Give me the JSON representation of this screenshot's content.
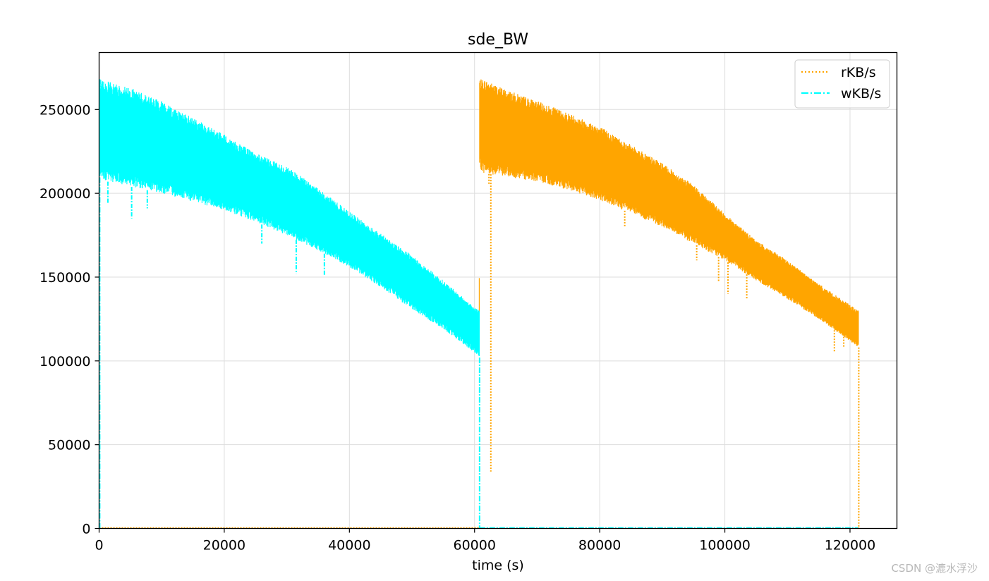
{
  "chart_data": {
    "type": "line",
    "title": "sde_BW",
    "xlabel": "time (s)",
    "ylabel": "",
    "xlim": [
      0,
      127500
    ],
    "ylim": [
      0,
      284000
    ],
    "xticks": [
      0,
      20000,
      40000,
      60000,
      80000,
      100000,
      120000
    ],
    "yticks": [
      0,
      50000,
      100000,
      150000,
      200000,
      250000
    ],
    "xtick_labels": [
      "0",
      "20000",
      "40000",
      "60000",
      "80000",
      "100000",
      "120000"
    ],
    "ytick_labels": [
      "0",
      "50000",
      "100000",
      "150000",
      "200000",
      "250000"
    ],
    "grid": true,
    "legend_position": "top-right",
    "series": [
      {
        "name": "rKB/s",
        "color": "#ffa500",
        "linestyle": "dotted",
        "x": [
          0,
          60700,
          60800,
          61500,
          65000,
          70000,
          75000,
          80000,
          85000,
          90000,
          95000,
          100000,
          105000,
          110000,
          115000,
          121400,
          121500
        ],
        "upper": [
          0,
          0,
          268000,
          268000,
          262000,
          255000,
          248000,
          240000,
          229000,
          218000,
          205000,
          188000,
          172000,
          160000,
          146000,
          130000,
          0
        ],
        "lower": [
          0,
          0,
          215000,
          212000,
          210000,
          207000,
          202000,
          196000,
          188000,
          180000,
          170000,
          160000,
          148000,
          137000,
          125000,
          108000,
          0
        ],
        "dips": [
          [
            62600,
            34000
          ],
          [
            62300,
            205000
          ],
          [
            84000,
            180000
          ],
          [
            95500,
            160000
          ],
          [
            99000,
            147000
          ],
          [
            100500,
            140000
          ],
          [
            103500,
            137000
          ],
          [
            117500,
            105000
          ],
          [
            119000,
            108000
          ]
        ]
      },
      {
        "name": "wKB/s",
        "color": "#00ffff",
        "linestyle": "dashdot",
        "x": [
          0,
          100,
          5000,
          10000,
          15000,
          20000,
          25000,
          30000,
          35000,
          40000,
          45000,
          50000,
          55000,
          60000,
          60800,
          60900
        ],
        "upper": [
          0,
          268000,
          263000,
          255000,
          245000,
          235000,
          224000,
          216000,
          203000,
          189000,
          176000,
          163000,
          148000,
          132000,
          131000,
          0
        ],
        "lower": [
          0,
          208000,
          204000,
          200000,
          195000,
          190000,
          183000,
          175000,
          166000,
          156000,
          144000,
          131000,
          119000,
          105000,
          102000,
          0
        ],
        "dips": [
          [
            1400,
            194000
          ],
          [
            5200,
            185000
          ],
          [
            7700,
            191000
          ],
          [
            26000,
            170000
          ],
          [
            31500,
            152000
          ],
          [
            36000,
            151000
          ],
          [
            48500,
            145000
          ],
          [
            53000,
            133000
          ]
        ]
      }
    ]
  },
  "watermark": "CSDN @漉水浮沙"
}
